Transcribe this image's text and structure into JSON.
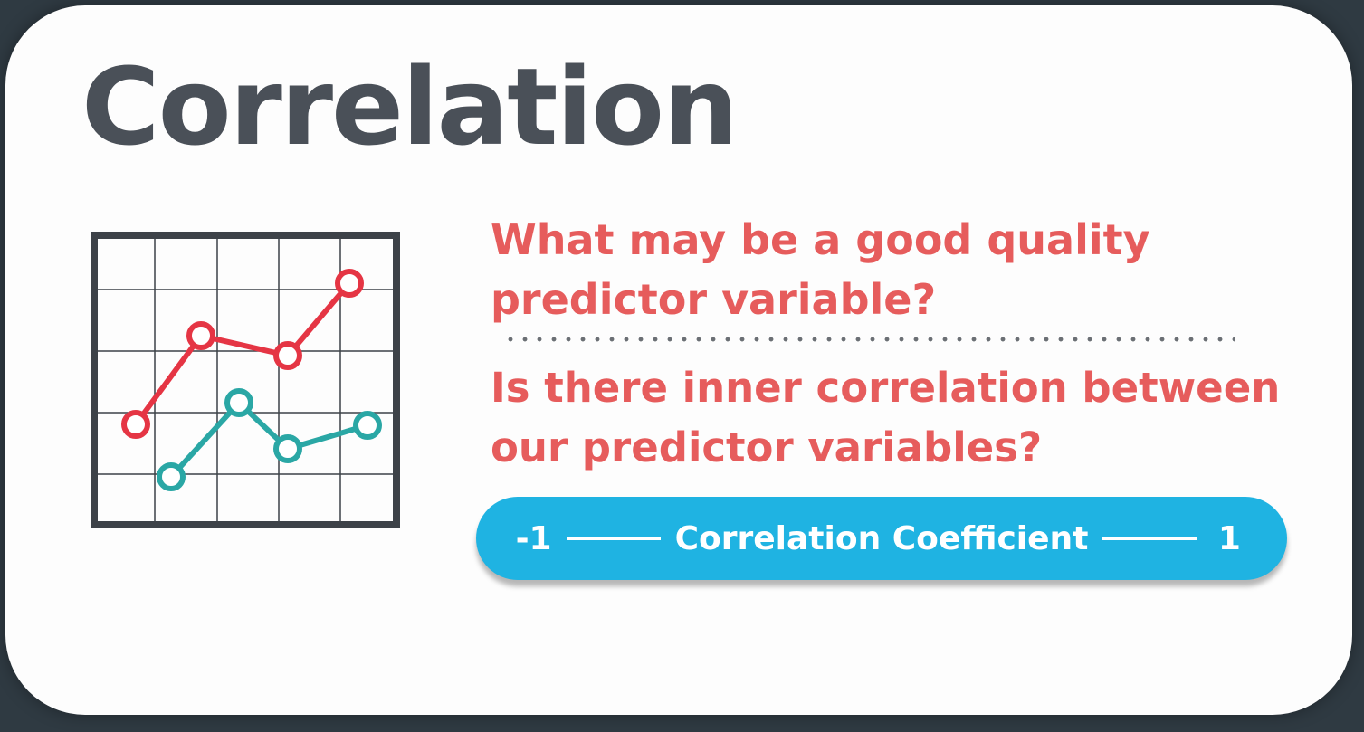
{
  "slide": {
    "title": "Correlation",
    "question_1": "What may be a good quality predictor variable?",
    "question_2": "Is there inner correlation between our predictor variables?",
    "coefficient_bar": {
      "min_label": "-1",
      "label": "Correlation Coefficient",
      "max_label": "1"
    }
  },
  "icon": {
    "name": "line-chart-icon",
    "colors": {
      "frame": "#3d4248",
      "grid": "#3d4248",
      "series_red": "#e53544",
      "series_teal": "#2aa7a5"
    }
  },
  "colors": {
    "background": "#2f3a42",
    "card": "#fdfdfd",
    "title": "#4a5058",
    "question": "#e65c5c",
    "pill": "#1fb3e2",
    "pill_text": "#ffffff"
  }
}
